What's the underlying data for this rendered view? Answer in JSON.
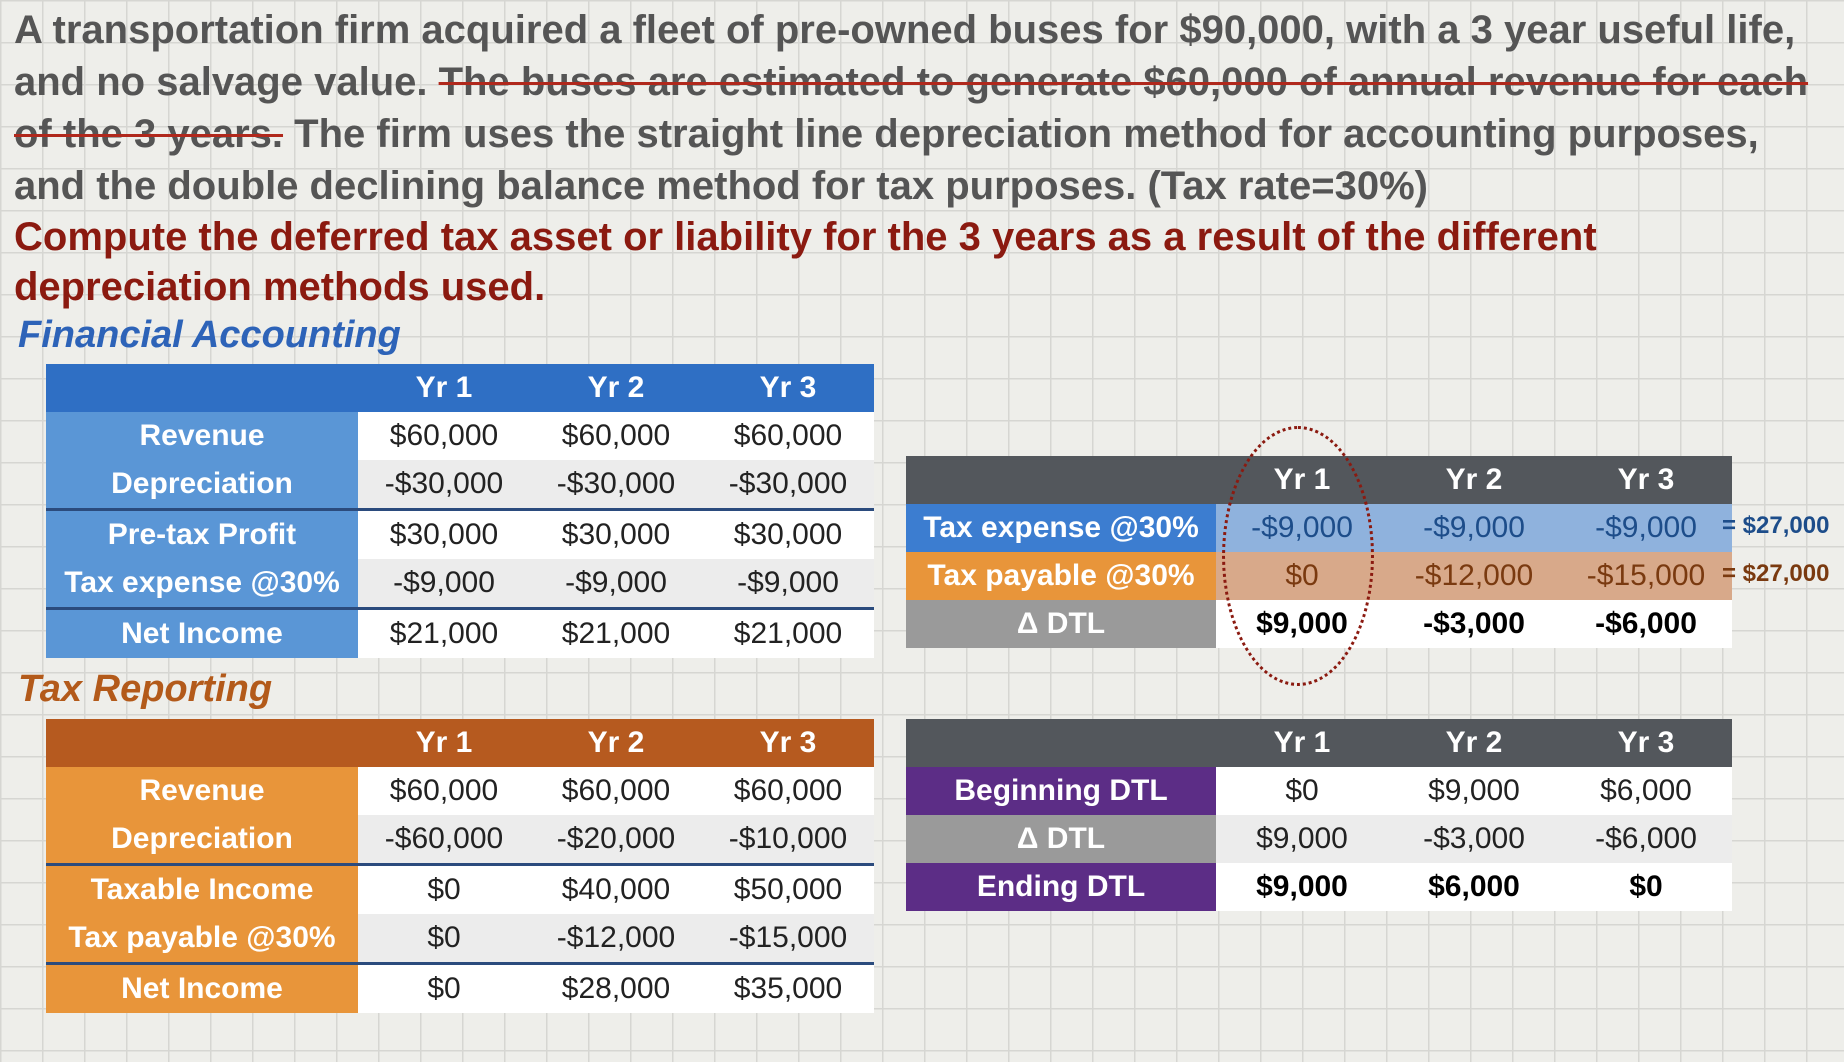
{
  "problem": {
    "part1": "A transportation firm acquired a fleet of pre-owned buses for $90,000, with a 3 year useful life, and no salvage value.",
    "struck": "The buses are estimated to generate $60,000 of annual revenue for each of the 3 years.",
    "part2": "The firm uses the straight line depreciation method for accounting purposes, and the double declining balance method for tax purposes. (Tax rate=30%)"
  },
  "question": "Compute the deferred tax asset or liability for the 3 years as a result of the different depreciation methods used.",
  "financial": {
    "title": "Financial Accounting",
    "headers": [
      "Yr 1",
      "Yr 2",
      "Yr 3"
    ],
    "rows": [
      {
        "label": "Revenue",
        "values": [
          "$60,000",
          "$60,000",
          "$60,000"
        ]
      },
      {
        "label": "Depreciation",
        "values": [
          "-$30,000",
          "-$30,000",
          "-$30,000"
        ]
      },
      {
        "label": "Pre-tax Profit",
        "values": [
          "$30,000",
          "$30,000",
          "$30,000"
        ]
      },
      {
        "label": "Tax expense  @30%",
        "values": [
          "-$9,000",
          "-$9,000",
          "-$9,000"
        ]
      },
      {
        "label": "Net Income",
        "values": [
          "$21,000",
          "$21,000",
          "$21,000"
        ]
      }
    ]
  },
  "tax": {
    "title": "Tax Reporting",
    "headers": [
      "Yr 1",
      "Yr 2",
      "Yr 3"
    ],
    "rows": [
      {
        "label": "Revenue",
        "values": [
          "$60,000",
          "$60,000",
          "$60,000"
        ]
      },
      {
        "label": "Depreciation",
        "values": [
          "-$60,000",
          "-$20,000",
          "-$10,000"
        ]
      },
      {
        "label": "Taxable Income",
        "values": [
          "$0",
          "$40,000",
          "$50,000"
        ]
      },
      {
        "label": "Tax payable  @30%",
        "values": [
          "$0",
          "-$12,000",
          "-$15,000"
        ]
      },
      {
        "label": "Net Income",
        "values": [
          "$0",
          "$28,000",
          "$35,000"
        ]
      }
    ]
  },
  "dtl_change": {
    "headers": [
      "Yr 1",
      "Yr 2",
      "Yr 3"
    ],
    "rows": [
      {
        "label": "Tax expense  @30%",
        "values": [
          "-$9,000",
          "-$9,000",
          "-$9,000"
        ]
      },
      {
        "label": "Tax payable  @30%",
        "values": [
          "$0",
          "-$12,000",
          "-$15,000"
        ]
      },
      {
        "label": "Δ DTL",
        "values": [
          "$9,000",
          "-$3,000",
          "-$6,000"
        ]
      }
    ],
    "sum_expense": "= $27,000",
    "sum_payable": "= $27,000"
  },
  "dtl_balance": {
    "headers": [
      "Yr 1",
      "Yr 2",
      "Yr 3"
    ],
    "rows": [
      {
        "label": "Beginning DTL",
        "values": [
          "$0",
          "$9,000",
          "$6,000"
        ]
      },
      {
        "label": "Δ DTL",
        "values": [
          "$9,000",
          "-$3,000",
          "-$6,000"
        ]
      },
      {
        "label": "Ending DTL",
        "values": [
          "$9,000",
          "$6,000",
          "$0"
        ]
      }
    ]
  },
  "colors": {
    "financial_header": "#2f6fc4",
    "tax_header": "#b65a1f",
    "question_text": "#8b1a10",
    "annotation_circle": "#8b1a10"
  }
}
